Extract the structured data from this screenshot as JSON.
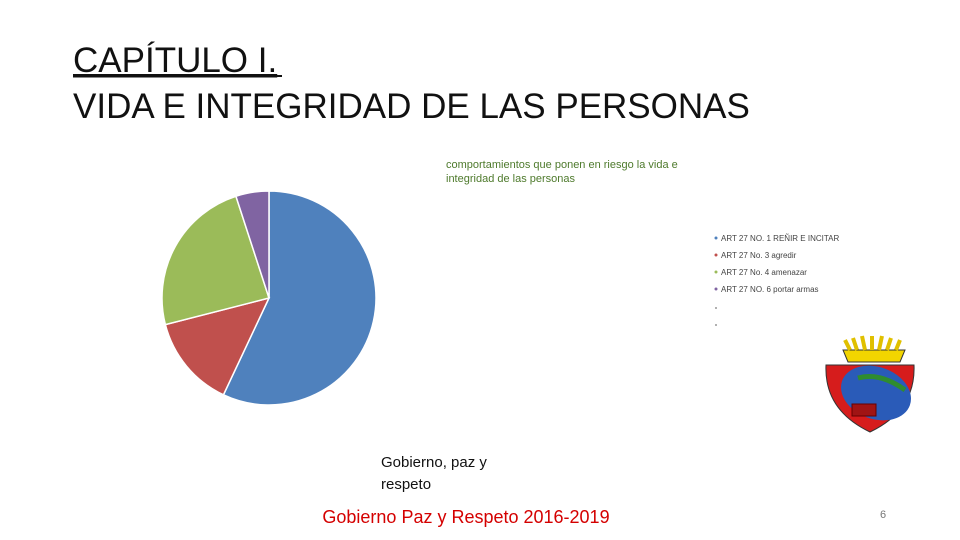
{
  "slide": {
    "title_line1": "CAPÍTULO I.",
    "title_line2": "VIDA E INTEGRIDAD DE LAS PERSONAS",
    "caption": [
      "Gobierno, paz y",
      "respeto"
    ],
    "footer": "Gobierno Paz y Respeto 2016-2019",
    "page": "6"
  },
  "chart_data": {
    "type": "pie",
    "title": [
      "comportamientos que ponen en riesgo la vida e",
      "integridad de las personas"
    ],
    "categories": [
      "ART 27 NO. 1 REÑIR E INCITAR",
      "ART 27 No. 3 agredir",
      "ART 27 No. 4 amenazar",
      "ART 27 NO. 6 portar armas"
    ],
    "values": [
      57,
      14,
      24,
      5
    ],
    "colors": [
      "#4f81bd",
      "#c0504d",
      "#9bbb59",
      "#8064a2"
    ],
    "legend": "right"
  }
}
